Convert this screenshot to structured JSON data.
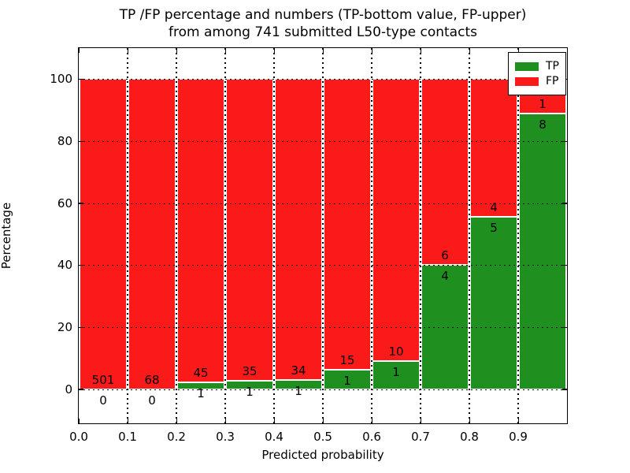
{
  "chart_data": {
    "type": "bar",
    "variant": "stacked-percentage-histogram",
    "title_line1": "TP /FP percentage and numbers (TP-bottom value, FP-upper)",
    "title_line2": "from among 741 submitted L50-type contacts",
    "total_contacts": 741,
    "xlabel": "Predicted probability",
    "ylabel": "Percentage",
    "xlim": [
      0.0,
      1.0
    ],
    "ylim": [
      -11,
      110
    ],
    "x_tick_labels": [
      "0.0",
      "0.1",
      "0.2",
      "0.3",
      "0.4",
      "0.5",
      "0.6",
      "0.7",
      "0.8",
      "0.9"
    ],
    "y_tick_values": [
      0,
      20,
      40,
      60,
      80,
      100
    ],
    "grid": {
      "style": "dotted",
      "vertical_at": [
        0.1,
        0.2,
        0.3,
        0.4,
        0.5,
        0.6,
        0.7,
        0.8,
        0.9
      ],
      "horizontal_at": [
        0,
        20,
        40,
        60,
        80,
        100
      ]
    },
    "bin_width": 0.1,
    "bins": [
      {
        "x0": 0.0,
        "x1": 0.1,
        "tp": 0,
        "fp": 501,
        "tp_pct": 0.0,
        "fp_pct": 100.0
      },
      {
        "x0": 0.1,
        "x1": 0.2,
        "tp": 0,
        "fp": 68,
        "tp_pct": 0.0,
        "fp_pct": 100.0
      },
      {
        "x0": 0.2,
        "x1": 0.3,
        "tp": 1,
        "fp": 45,
        "tp_pct": 2.17,
        "fp_pct": 97.83
      },
      {
        "x0": 0.3,
        "x1": 0.4,
        "tp": 1,
        "fp": 35,
        "tp_pct": 2.78,
        "fp_pct": 97.22
      },
      {
        "x0": 0.4,
        "x1": 0.5,
        "tp": 1,
        "fp": 34,
        "tp_pct": 2.86,
        "fp_pct": 97.14
      },
      {
        "x0": 0.5,
        "x1": 0.6,
        "tp": 1,
        "fp": 15,
        "tp_pct": 6.25,
        "fp_pct": 93.75
      },
      {
        "x0": 0.6,
        "x1": 0.7,
        "tp": 1,
        "fp": 10,
        "tp_pct": 9.09,
        "fp_pct": 90.91
      },
      {
        "x0": 0.7,
        "x1": 0.8,
        "tp": 4,
        "fp": 6,
        "tp_pct": 40.0,
        "fp_pct": 60.0
      },
      {
        "x0": 0.8,
        "x1": 0.9,
        "tp": 5,
        "fp": 4,
        "tp_pct": 55.56,
        "fp_pct": 44.44
      },
      {
        "x0": 0.9,
        "x1": 1.0,
        "tp": 8,
        "fp": 1,
        "tp_pct": 88.89,
        "fp_pct": 11.11
      }
    ],
    "colors": {
      "tp": "#1f8f1f",
      "fp": "#fa1a1a",
      "text": "#000000",
      "background": "#ffffff"
    },
    "legend": {
      "position": "upper right",
      "entries": [
        {
          "label": "TP",
          "color": "#1f8f1f"
        },
        {
          "label": "FP",
          "color": "#fa1a1a"
        }
      ]
    }
  }
}
